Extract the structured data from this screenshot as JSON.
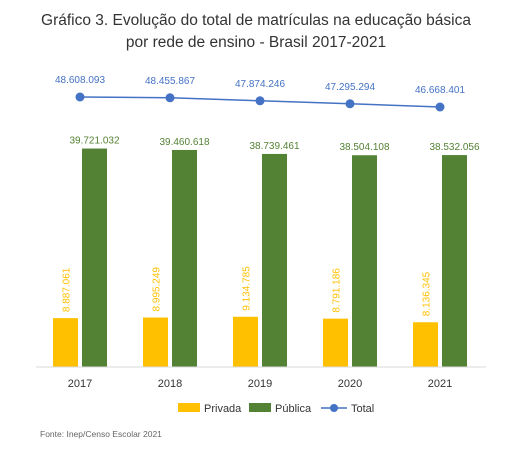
{
  "chart_data": {
    "type": "bar",
    "title": "Gráfico 3. Evolução do total de matrículas na educação básica",
    "subtitle": "por rede de ensino - Brasil 2017-2021",
    "categories": [
      "2017",
      "2018",
      "2019",
      "2020",
      "2021"
    ],
    "series": [
      {
        "name": "Privada",
        "type": "bar",
        "color": "#ffc000",
        "values": [
          8887061,
          8995249,
          9134785,
          8791186,
          8136345
        ],
        "labels": [
          "8.887.061",
          "8.995.249",
          "9.134.785",
          "8.791.186",
          "8.136.345"
        ]
      },
      {
        "name": "Pública",
        "type": "bar",
        "color": "#548235",
        "values": [
          39721032,
          39460618,
          38739461,
          38504108,
          38532056
        ],
        "labels": [
          "39.721.032",
          "39.460.618",
          "38.739.461",
          "38.504.108",
          "38.532.056"
        ]
      },
      {
        "name": "Total",
        "type": "line",
        "color": "#4472c4",
        "values": [
          48608093,
          48455867,
          47874246,
          47295294,
          46668401
        ],
        "labels": [
          "48.608.093",
          "48.455.867",
          "47.874.246",
          "47.295.294",
          "46.668.401"
        ]
      }
    ],
    "legend_position": "bottom",
    "grid": false
  },
  "source": "Fonte: Inep/Censo Escolar 2021"
}
